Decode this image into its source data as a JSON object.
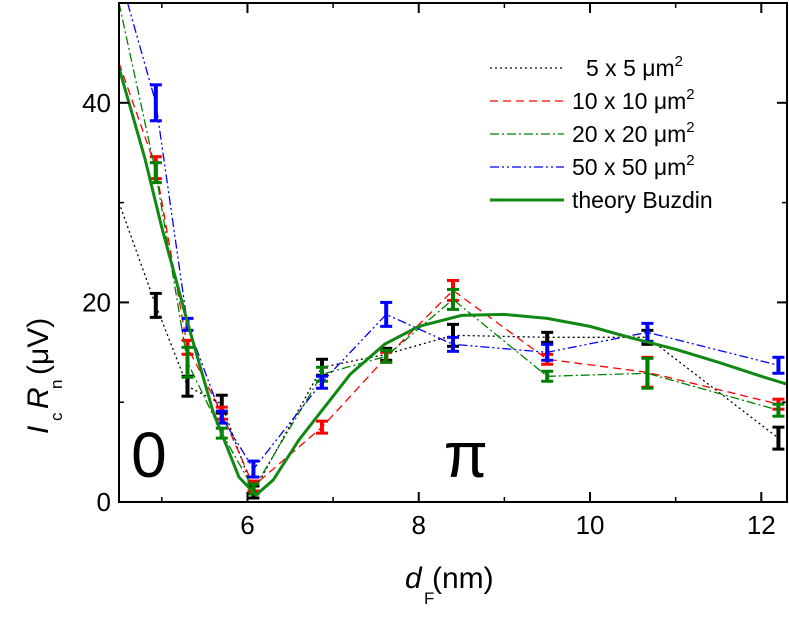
{
  "chart_data": {
    "type": "line",
    "x_axis": {
      "label_main": "d",
      "label_sub": "F",
      "label_unit": " (nm)",
      "range": [
        4.5,
        12.3
      ],
      "ticks": [
        6,
        8,
        10,
        12
      ],
      "tick_labels": [
        "6",
        "8",
        "10",
        "12"
      ]
    },
    "y_axis": {
      "label_parts": [
        "I",
        "c",
        "R",
        "n",
        " (μV)"
      ],
      "range": [
        0,
        50
      ],
      "ticks": [
        0,
        20,
        40
      ],
      "tick_labels": [
        "0",
        "20",
        "40"
      ]
    },
    "grid": false,
    "legend_position": "top-right",
    "legend": [
      {
        "label": "5 x 5 μm",
        "sup": "2"
      },
      {
        "label": "10 x 10 μm",
        "sup": "2"
      },
      {
        "label": "20 x 20 μm",
        "sup": "2"
      },
      {
        "label": "50 x 50 μm",
        "sup": "2"
      },
      {
        "label": "theory Buzdin",
        "sup": ""
      }
    ],
    "annotations": [
      {
        "text": "0",
        "x": 4.85,
        "y": 2.5
      },
      {
        "text": "π",
        "x": 8.55,
        "y": 2.5
      }
    ],
    "series": [
      {
        "color": "#000000",
        "line_style": "dotted",
        "kind": "data",
        "x": [
          4.5,
          4.93,
          5.3,
          5.7,
          6.07,
          6.87,
          7.62,
          8.4,
          9.5,
          10.67,
          12.2
        ],
        "y": [
          30,
          19.7,
          11.6,
          9.8,
          1.0,
          13.5,
          14.8,
          16.7,
          16.5,
          16.5,
          6.4
        ],
        "err": [
          null,
          1.2,
          1.0,
          0.9,
          0.6,
          0.8,
          0.6,
          1.1,
          0.5,
          0.7,
          1.1
        ]
      },
      {
        "color": "#ff0000",
        "line_style": "dashed",
        "kind": "data",
        "x": [
          4.5,
          4.93,
          5.3,
          5.7,
          6.07,
          6.87,
          7.62,
          8.4,
          9.5,
          10.67,
          12.2
        ],
        "y": [
          44,
          33.5,
          15.5,
          8.9,
          1.6,
          7.5,
          14.5,
          21.2,
          14.3,
          13.0,
          9.8
        ],
        "err": [
          null,
          1.1,
          0.7,
          0.6,
          0.5,
          0.6,
          0.5,
          1.0,
          0.5,
          1.5,
          0.5
        ]
      },
      {
        "color": "#008000",
        "line_style": "dash-dot",
        "kind": "data",
        "x": [
          4.5,
          4.93,
          5.3,
          5.7,
          6.07,
          6.87,
          7.62,
          8.4,
          9.5,
          10.67,
          12.2
        ],
        "y": [
          50,
          33.0,
          14.0,
          6.9,
          1.3,
          12.8,
          14.6,
          20.3,
          12.6,
          12.9,
          9.2
        ],
        "err": [
          null,
          1.0,
          1.5,
          0.5,
          0.5,
          0.7,
          0.6,
          1.0,
          0.5,
          1.5,
          0.6
        ]
      },
      {
        "color": "#0000ff",
        "line_style": "dash-dot-dot",
        "kind": "data",
        "x": [
          4.6,
          4.93,
          5.3,
          5.7,
          6.07,
          6.87,
          7.62,
          8.4,
          9.5,
          10.67,
          12.2
        ],
        "y": [
          50,
          40.0,
          17.8,
          8.5,
          3.3,
          12.0,
          18.8,
          15.8,
          15.0,
          17.0,
          13.7
        ],
        "err": [
          null,
          1.8,
          0.6,
          0.6,
          0.8,
          0.6,
          1.2,
          0.7,
          0.8,
          0.9,
          0.8
        ]
      },
      {
        "color": "#118811",
        "line_style": "solid",
        "kind": "theory",
        "x": [
          4.5,
          4.8,
          5.0,
          5.3,
          5.6,
          5.9,
          6.1,
          6.3,
          6.6,
          6.9,
          7.2,
          7.6,
          8.0,
          8.5,
          9.0,
          9.5,
          10.0,
          10.5,
          11.0,
          11.5,
          12.0,
          12.3
        ],
        "y": [
          43.5,
          34.5,
          27.5,
          18.0,
          9.0,
          2.5,
          0.7,
          2.2,
          6.2,
          9.5,
          12.8,
          15.8,
          17.6,
          18.7,
          18.8,
          18.4,
          17.6,
          16.4,
          15.3,
          14.0,
          12.6,
          11.8
        ]
      }
    ]
  }
}
